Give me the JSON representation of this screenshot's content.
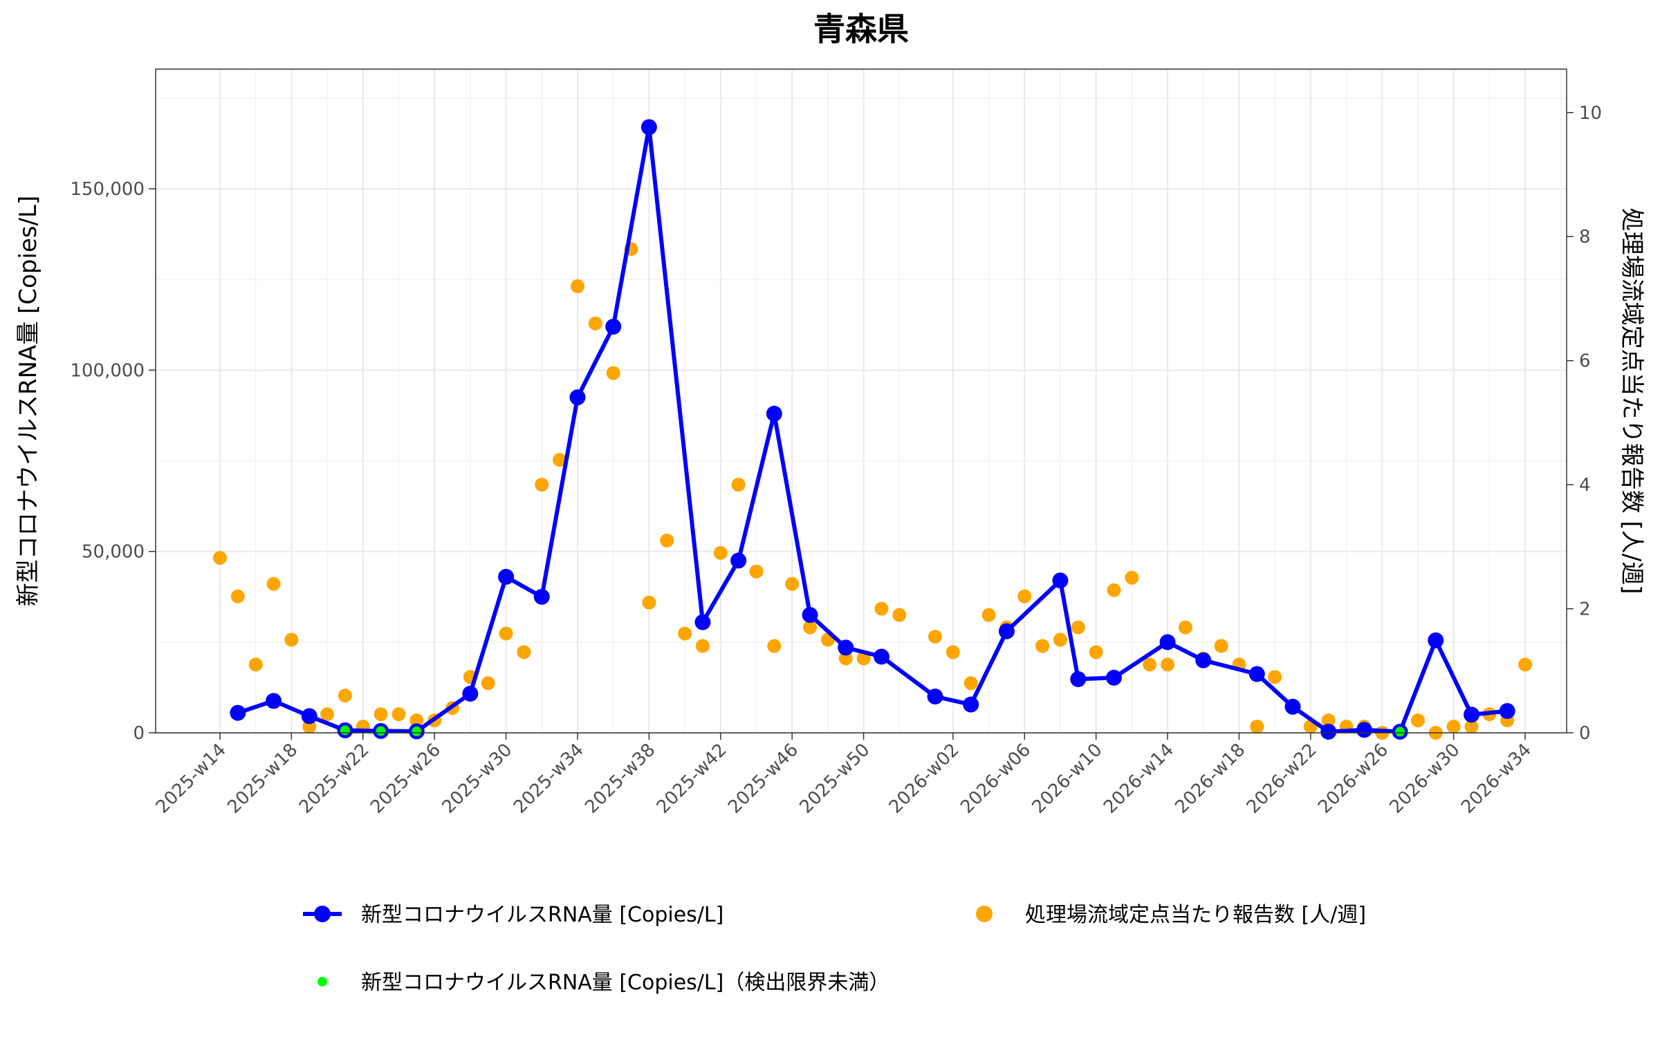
{
  "chart_data": {
    "type": "line",
    "title": "青森県",
    "ylabel": "新型コロナウイルスRNA量 [Copies/L]",
    "y2label": "処理場流域定点当たり報告数 [人/週]",
    "ylim": [
      0,
      183000
    ],
    "y2lim": [
      0,
      10.7
    ],
    "yticks": [
      0,
      50000,
      100000,
      150000
    ],
    "yticklabels": [
      "0",
      "50,000",
      "100,000",
      "150,000"
    ],
    "y2ticks": [
      0,
      2,
      4,
      6,
      8,
      10
    ],
    "y2ticklabels": [
      "0",
      "2",
      "4",
      "6",
      "8",
      "10"
    ],
    "xticklabels": [
      "2025-w14",
      "2025-w18",
      "2025-w22",
      "2025-w26",
      "2025-w30",
      "2025-w34",
      "2025-w38",
      "2025-w42",
      "2025-w46",
      "2025-w50",
      "2026-w02",
      "2026-w06",
      "2026-w10",
      "2026-w14",
      "2026-w18",
      "2026-w22",
      "2026-w26",
      "2026-w30",
      "2026-w34"
    ],
    "grid": true,
    "legend_position": "bottom",
    "series": [
      {
        "name": "新型コロナウイルスRNA量 [Copies/L]",
        "type": "line",
        "axis": "left",
        "color": "#0000ff",
        "points": [
          {
            "x": "2025-w15",
            "y": 5500
          },
          {
            "x": "2025-w17",
            "y": 8800
          },
          {
            "x": "2025-w19",
            "y": 4600
          },
          {
            "x": "2025-w21",
            "y": 700
          },
          {
            "x": "2025-w23",
            "y": 500
          },
          {
            "x": "2025-w25",
            "y": 400
          },
          {
            "x": "2025-w28",
            "y": 10800
          },
          {
            "x": "2025-w30",
            "y": 43000
          },
          {
            "x": "2025-w32",
            "y": 37500
          },
          {
            "x": "2025-w34",
            "y": 92500
          },
          {
            "x": "2025-w36",
            "y": 112000
          },
          {
            "x": "2025-w38",
            "y": 167000
          },
          {
            "x": "2025-w41",
            "y": 30500
          },
          {
            "x": "2025-w43",
            "y": 47500
          },
          {
            "x": "2025-w45",
            "y": 88000
          },
          {
            "x": "2025-w47",
            "y": 32500
          },
          {
            "x": "2025-w49",
            "y": 23500
          },
          {
            "x": "2025-w51",
            "y": 21000
          },
          {
            "x": "2026-w01",
            "y": 10000
          },
          {
            "x": "2026-w03",
            "y": 7800
          },
          {
            "x": "2026-w05",
            "y": 28000
          },
          {
            "x": "2026-w08",
            "y": 42000
          },
          {
            "x": "2026-w09",
            "y": 14800
          },
          {
            "x": "2026-w11",
            "y": 15200
          },
          {
            "x": "2026-w14",
            "y": 25000
          },
          {
            "x": "2026-w16",
            "y": 20000
          },
          {
            "x": "2026-w19",
            "y": 16200
          },
          {
            "x": "2026-w21",
            "y": 7200
          },
          {
            "x": "2026-w23",
            "y": 300
          },
          {
            "x": "2026-w25",
            "y": 800
          },
          {
            "x": "2026-w27",
            "y": 300
          },
          {
            "x": "2026-w29",
            "y": 25500
          },
          {
            "x": "2026-w31",
            "y": 5000
          },
          {
            "x": "2026-w33",
            "y": 6000
          }
        ]
      },
      {
        "name": "新型コロナウイルスRNA量 [Copies/L]（検出限界未満）",
        "type": "scatter",
        "axis": "left",
        "color": "#00ff00",
        "points": [
          {
            "x": "2025-w21",
            "y": 700
          },
          {
            "x": "2025-w23",
            "y": 500
          },
          {
            "x": "2025-w25",
            "y": 400
          },
          {
            "x": "2026-w27",
            "y": 300
          }
        ]
      },
      {
        "name": "処理場流域定点当たり報告数 [人/週]",
        "type": "scatter",
        "axis": "right",
        "color": "#ffa500",
        "points": [
          {
            "x": "2025-w14",
            "y": 2.82
          },
          {
            "x": "2025-w15",
            "y": 2.2
          },
          {
            "x": "2025-w16",
            "y": 1.1
          },
          {
            "x": "2025-w17",
            "y": 2.4
          },
          {
            "x": "2025-w18",
            "y": 1.5
          },
          {
            "x": "2025-w19",
            "y": 0.1
          },
          {
            "x": "2025-w20",
            "y": 0.3
          },
          {
            "x": "2025-w21",
            "y": 0.6
          },
          {
            "x": "2025-w22",
            "y": 0.1
          },
          {
            "x": "2025-w23",
            "y": 0.3
          },
          {
            "x": "2025-w24",
            "y": 0.3
          },
          {
            "x": "2025-w25",
            "y": 0.2
          },
          {
            "x": "2025-w26",
            "y": 0.2
          },
          {
            "x": "2025-w27",
            "y": 0.4
          },
          {
            "x": "2025-w28",
            "y": 0.9
          },
          {
            "x": "2025-w29",
            "y": 0.8
          },
          {
            "x": "2025-w30",
            "y": 1.6
          },
          {
            "x": "2025-w31",
            "y": 1.3
          },
          {
            "x": "2025-w32",
            "y": 4.0
          },
          {
            "x": "2025-w33",
            "y": 4.4
          },
          {
            "x": "2025-w34",
            "y": 7.2
          },
          {
            "x": "2025-w35",
            "y": 6.6
          },
          {
            "x": "2025-w36",
            "y": 5.8
          },
          {
            "x": "2025-w37",
            "y": 7.8
          },
          {
            "x": "2025-w38",
            "y": 2.1
          },
          {
            "x": "2025-w39",
            "y": 3.1
          },
          {
            "x": "2025-w40",
            "y": 1.6
          },
          {
            "x": "2025-w41",
            "y": 1.4
          },
          {
            "x": "2025-w42",
            "y": 2.9
          },
          {
            "x": "2025-w43",
            "y": 4.0
          },
          {
            "x": "2025-w44",
            "y": 2.6
          },
          {
            "x": "2025-w45",
            "y": 1.4
          },
          {
            "x": "2025-w46",
            "y": 2.4
          },
          {
            "x": "2025-w47",
            "y": 1.7
          },
          {
            "x": "2025-w48",
            "y": 1.5
          },
          {
            "x": "2025-w49",
            "y": 1.2
          },
          {
            "x": "2025-w50",
            "y": 1.2
          },
          {
            "x": "2025-w51",
            "y": 2.0
          },
          {
            "x": "2025-w52",
            "y": 1.9
          },
          {
            "x": "2026-w01",
            "y": 1.55
          },
          {
            "x": "2026-w02",
            "y": 1.3
          },
          {
            "x": "2026-w03",
            "y": 0.8
          },
          {
            "x": "2026-w04",
            "y": 1.9
          },
          {
            "x": "2026-w05",
            "y": 1.7
          },
          {
            "x": "2026-w06",
            "y": 2.2
          },
          {
            "x": "2026-w07",
            "y": 1.4
          },
          {
            "x": "2026-w08",
            "y": 1.5
          },
          {
            "x": "2026-w09",
            "y": 1.7
          },
          {
            "x": "2026-w10",
            "y": 1.3
          },
          {
            "x": "2026-w11",
            "y": 2.3
          },
          {
            "x": "2026-w12",
            "y": 2.5
          },
          {
            "x": "2026-w13",
            "y": 1.1
          },
          {
            "x": "2026-w14",
            "y": 1.1
          },
          {
            "x": "2026-w15",
            "y": 1.7
          },
          {
            "x": "2026-w16",
            "y": 1.2
          },
          {
            "x": "2026-w17",
            "y": 1.4
          },
          {
            "x": "2026-w18",
            "y": 1.1
          },
          {
            "x": "2026-w19",
            "y": 0.1
          },
          {
            "x": "2026-w20",
            "y": 0.9
          },
          {
            "x": "2026-w21",
            "y": 0.4
          },
          {
            "x": "2026-w22",
            "y": 0.1
          },
          {
            "x": "2026-w23",
            "y": 0.2
          },
          {
            "x": "2026-w24",
            "y": 0.1
          },
          {
            "x": "2026-w25",
            "y": 0.1
          },
          {
            "x": "2026-w26",
            "y": 0.0
          },
          {
            "x": "2026-w27",
            "y": 0.0
          },
          {
            "x": "2026-w28",
            "y": 0.2
          },
          {
            "x": "2026-w29",
            "y": 0.0
          },
          {
            "x": "2026-w30",
            "y": 0.1
          },
          {
            "x": "2026-w31",
            "y": 0.1
          },
          {
            "x": "2026-w32",
            "y": 0.3
          },
          {
            "x": "2026-w33",
            "y": 0.2
          },
          {
            "x": "2026-w34",
            "y": 1.1
          }
        ]
      }
    ]
  }
}
